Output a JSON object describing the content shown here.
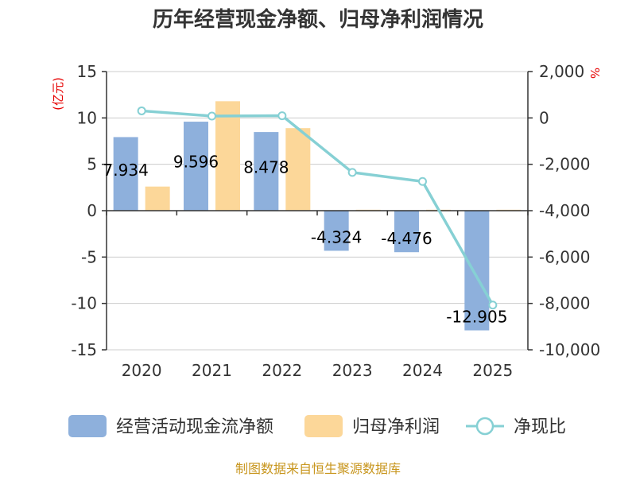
{
  "chart_data": {
    "type": "bar",
    "title": "历年经营现金净额、归母净利润情况",
    "categories": [
      "2020",
      "2021",
      "2022",
      "2023",
      "2024",
      "2025"
    ],
    "series": [
      {
        "name": "经营活动现金流净额",
        "type": "bar",
        "axis": "left",
        "color": "#8eb0dc",
        "values": [
          7.934,
          9.596,
          8.478,
          -4.324,
          -4.476,
          -12.905
        ],
        "labels": [
          "7.934",
          "9.596",
          "8.478",
          "-4.324",
          "-4.476",
          "-12.905"
        ]
      },
      {
        "name": "归母净利润",
        "type": "bar",
        "axis": "left",
        "color": "#fcd799",
        "values": [
          2.6,
          11.8,
          8.9,
          0.1,
          0.1,
          0.1
        ]
      },
      {
        "name": "净现比",
        "type": "line",
        "axis": "right",
        "color": "#86d0d4",
        "values": [
          305,
          81,
          95,
          -2350,
          -2740,
          -8070
        ]
      }
    ],
    "left_axis": {
      "unit": "(亿元)",
      "ylim": [
        -15,
        15
      ],
      "ticks": [
        "15",
        "10",
        "5",
        "0",
        "-5",
        "-10",
        "-15"
      ]
    },
    "right_axis": {
      "unit": "%",
      "ylim": [
        -10000,
        2000
      ],
      "ticks": [
        "2,000",
        "0",
        "-2,000",
        "-4,000",
        "-6,000",
        "-8,000",
        "-10,000"
      ]
    },
    "legend": {
      "position": "bottom",
      "items": [
        "经营活动现金流净额",
        "归母净利润",
        "净现比"
      ]
    },
    "source": "制图数据来自恒生聚源数据库"
  }
}
